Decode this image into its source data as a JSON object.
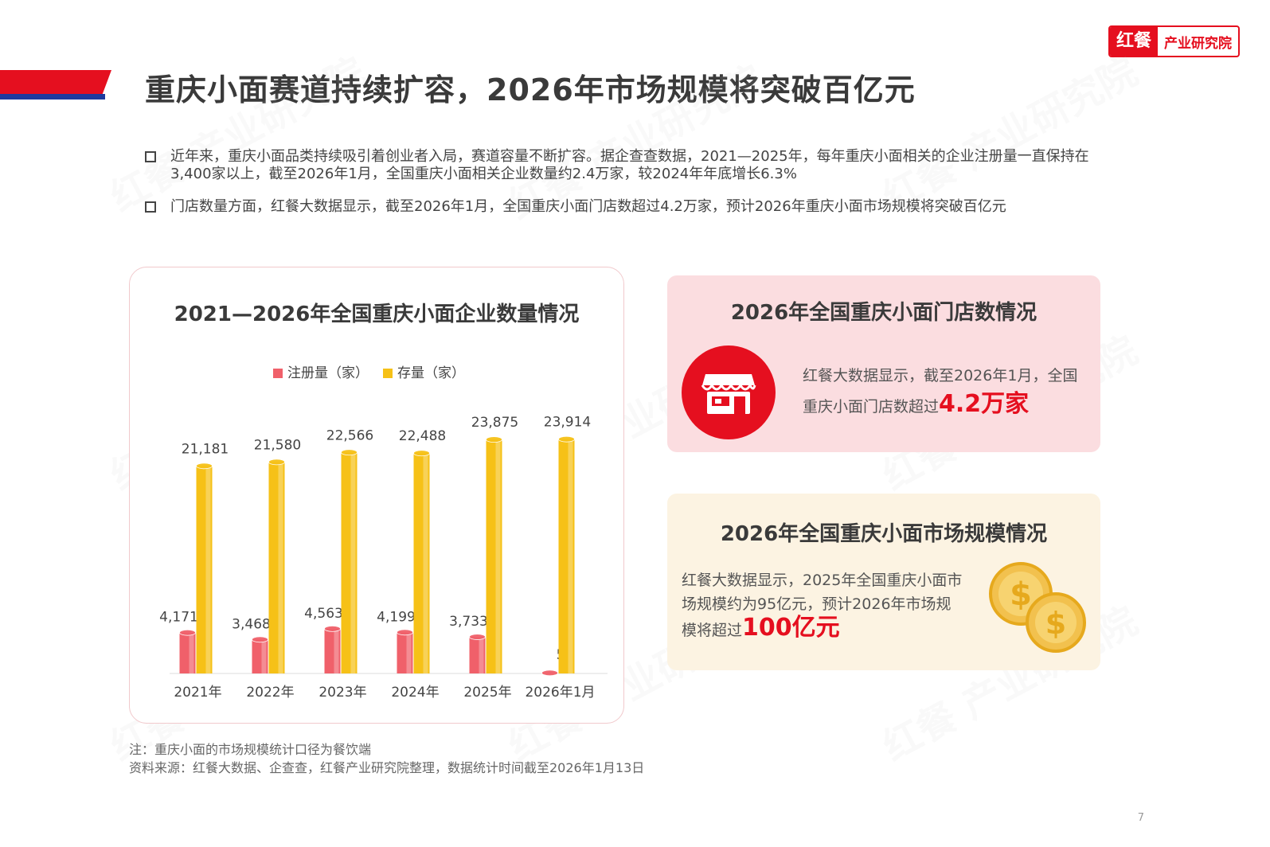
{
  "header": {
    "title": "重庆小面赛道持续扩容，2026年市场规模将突破百亿元",
    "logo_mark": "红餐",
    "logo_text": "产业研究院"
  },
  "bullets": [
    "近年来，重庆小面品类持续吸引着创业者入局，赛道容量不断扩容。据企查查数据，2021—2025年，每年重庆小面相关的企业注册量一直保持在3,400家以上，截至2026年1月，全国重庆小面相关企业数量约2.4万家，较2024年年底增长6.3%",
    "门店数量方面，红餐大数据显示，截至2026年1月，全国重庆小面门店数超过4.2万家，预计2026年重庆小面市场规模将突破百亿元"
  ],
  "chart_data": {
    "type": "bar",
    "title": "2021—2026年全国重庆小面企业数量情况",
    "categories": [
      "2021年",
      "2022年",
      "2023年",
      "2024年",
      "2025年",
      "2026年1月"
    ],
    "series": [
      {
        "name": "注册量（家）",
        "values": [
          4171,
          3468,
          4563,
          4199,
          3733,
          55
        ],
        "labels": [
          "4,171",
          "3,468",
          "4,563",
          "4,199",
          "3,733",
          "55"
        ],
        "color": "#f0606a"
      },
      {
        "name": "存量（家）",
        "values": [
          21181,
          21580,
          22566,
          22488,
          23875,
          23914
        ],
        "labels": [
          "21,181",
          "21,580",
          "22,566",
          "22,488",
          "23,875",
          "23,914"
        ],
        "color": "#f6c117"
      }
    ],
    "ylim": [
      0,
      26000
    ],
    "legend": "top"
  },
  "store_card": {
    "title": "2026年全国重庆小面门店数情况",
    "text": "红餐大数据显示，截至2026年1月，全国重庆小面门店数超过",
    "highlight": "4.2万家",
    "icon": "storefront-icon"
  },
  "market_card": {
    "title": "2026年全国重庆小面市场规模情况",
    "text": "红餐大数据显示，2025年全国重庆小面市场规模约为95亿元，预计2026年市场规模将超过",
    "highlight": "100亿元",
    "icon": "coins-icon"
  },
  "notes": {
    "note": "注：重庆小面的市场规模统计口径为餐饮端",
    "source": "资料来源：红餐大数据、企查查，红餐产业研究院整理，数据统计时间截至2026年1月13日"
  },
  "page_number": "7",
  "colors": {
    "accent_red": "#e50f1f",
    "accent_blue": "#1e3a9e",
    "reg_bar": "#f0606a",
    "stock_bar": "#f6c117"
  }
}
